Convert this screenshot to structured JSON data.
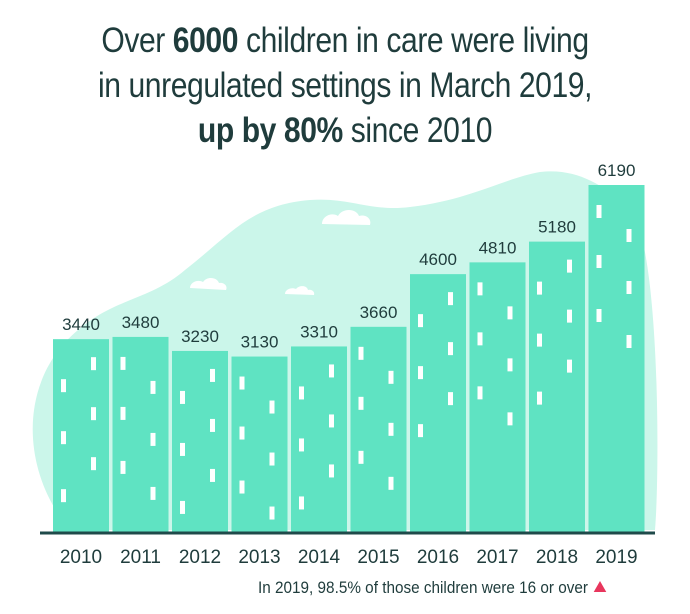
{
  "title": {
    "line1_pre": "Over ",
    "line1_bold": "6000",
    "line1_post": " children in care were living",
    "line2": "in unregulated settings in March 2019,",
    "line3_bold": "up by 80%",
    "line3_post": " since 2010"
  },
  "footnote": "In 2019, 98.5% of those children were 16 or over",
  "colors": {
    "bar": "#5fe3c2",
    "window": "#ffffff",
    "background_shape": "#cbf6ea",
    "baseline": "#1f4a4a",
    "text": "#1f3c3c",
    "accent": "#e8365d"
  },
  "chart_data": {
    "type": "bar",
    "categories": [
      "2010",
      "2011",
      "2012",
      "2013",
      "2014",
      "2015",
      "2016",
      "2017",
      "2018",
      "2019"
    ],
    "values": [
      3440,
      3480,
      3230,
      3130,
      3310,
      3660,
      4600,
      4810,
      5180,
      6190
    ],
    "title": "Over 6000 children in care were living in unregulated settings in March 2019, up by 80% since 2010",
    "data_labels": [
      "3440",
      "3480",
      "3230",
      "3130",
      "3310",
      "3660",
      "4600",
      "4810",
      "5180",
      "6190"
    ],
    "xlabel": "",
    "ylabel": "",
    "ylim": [
      0,
      6190
    ],
    "grid": false,
    "legend": "none"
  }
}
